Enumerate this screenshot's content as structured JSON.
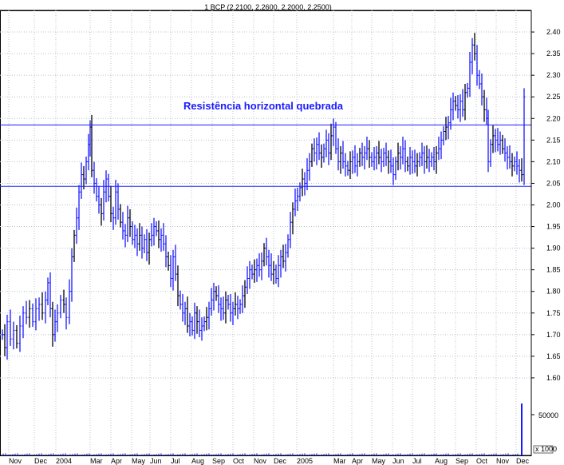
{
  "chart_data": {
    "type": "ohlc",
    "title": "1 BCP (2.2100, 2.2600, 2.2000, 2.2500)",
    "annotation": "Resistência horizontal quebrada",
    "price_axis": {
      "min": 1.55,
      "max": 2.45,
      "ticks": [
        "2.40",
        "2.35",
        "2.30",
        "2.25",
        "2.20",
        "2.15",
        "2.10",
        "2.05",
        "2.00",
        "1.95",
        "1.90",
        "1.85",
        "1.80",
        "1.75",
        "1.70",
        "1.65",
        "1.60"
      ]
    },
    "volume_axis": {
      "ticks": [
        "50000"
      ],
      "label": "x 1000"
    },
    "x_labels": [
      "Nov",
      "Dec",
      "2004",
      "Mar",
      "Apr",
      "May",
      "Jun",
      "Jul",
      "Aug",
      "Sep",
      "Oct",
      "Nov",
      "Dec",
      "2005",
      "Mar",
      "Apr",
      "May",
      "Jun",
      "Jul",
      "Aug",
      "Sep",
      "Oct",
      "Nov",
      "Dec"
    ],
    "horizontal_lines": [
      2.185,
      2.043
    ],
    "series": [
      {
        "name": "",
        "points": [
          [
            0,
            1.7
          ],
          [
            3,
            1.67
          ],
          [
            6,
            1.73
          ],
          [
            10,
            1.69
          ],
          [
            14,
            1.71
          ],
          [
            18,
            1.68
          ],
          [
            22,
            1.72
          ],
          [
            26,
            1.75
          ],
          [
            30,
            1.74
          ],
          [
            34,
            1.76
          ],
          [
            38,
            1.73
          ],
          [
            42,
            1.76
          ],
          [
            46,
            1.77
          ],
          [
            50,
            1.75
          ],
          [
            54,
            1.78
          ],
          [
            57,
            1.82
          ],
          [
            60,
            1.76
          ],
          [
            63,
            1.7
          ],
          [
            66,
            1.73
          ],
          [
            69,
            1.75
          ],
          [
            73,
            1.78
          ],
          [
            77,
            1.77
          ],
          [
            80,
            1.74
          ],
          [
            84,
            1.8
          ],
          [
            87,
            1.88
          ],
          [
            90,
            1.93
          ],
          [
            93,
            1.97
          ],
          [
            96,
            2.03
          ],
          [
            99,
            2.07
          ],
          [
            102,
            2.06
          ],
          [
            105,
            2.1
          ],
          [
            108,
            2.14
          ],
          [
            110,
            2.18
          ],
          [
            112,
            2.08
          ],
          [
            115,
            2.05
          ],
          [
            118,
            2.02
          ],
          [
            121,
            2.0
          ],
          [
            124,
            1.98
          ],
          [
            127,
            2.03
          ],
          [
            130,
            2.06
          ],
          [
            133,
            2.02
          ],
          [
            136,
            1.98
          ],
          [
            139,
            1.97
          ],
          [
            142,
            2.03
          ],
          [
            145,
            1.99
          ],
          [
            148,
            1.96
          ],
          [
            151,
            1.94
          ],
          [
            154,
            1.93
          ],
          [
            157,
            1.97
          ],
          [
            160,
            1.95
          ],
          [
            163,
            1.92
          ],
          [
            166,
            1.93
          ],
          [
            169,
            1.91
          ],
          [
            172,
            1.93
          ],
          [
            175,
            1.9
          ],
          [
            178,
            1.92
          ],
          [
            181,
            1.89
          ],
          [
            184,
            1.92
          ],
          [
            187,
            1.93
          ],
          [
            190,
            1.95
          ],
          [
            193,
            1.94
          ],
          [
            196,
            1.92
          ],
          [
            199,
            1.93
          ],
          [
            202,
            1.91
          ],
          [
            205,
            1.88
          ],
          [
            208,
            1.86
          ],
          [
            211,
            1.83
          ],
          [
            214,
            1.88
          ],
          [
            217,
            1.84
          ],
          [
            220,
            1.79
          ],
          [
            223,
            1.77
          ],
          [
            226,
            1.75
          ],
          [
            229,
            1.76
          ],
          [
            232,
            1.72
          ],
          [
            235,
            1.73
          ],
          [
            238,
            1.71
          ],
          [
            241,
            1.75
          ],
          [
            244,
            1.73
          ],
          [
            247,
            1.71
          ],
          [
            250,
            1.72
          ],
          [
            253,
            1.73
          ],
          [
            256,
            1.74
          ],
          [
            259,
            1.76
          ],
          [
            262,
            1.78
          ],
          [
            265,
            1.8
          ],
          [
            268,
            1.79
          ],
          [
            271,
            1.77
          ],
          [
            274,
            1.76
          ],
          [
            277,
            1.75
          ],
          [
            280,
            1.78
          ],
          [
            283,
            1.77
          ],
          [
            286,
            1.75
          ],
          [
            289,
            1.76
          ],
          [
            292,
            1.77
          ],
          [
            295,
            1.76
          ],
          [
            298,
            1.77
          ],
          [
            301,
            1.79
          ],
          [
            304,
            1.81
          ],
          [
            307,
            1.83
          ],
          [
            310,
            1.85
          ],
          [
            313,
            1.84
          ],
          [
            316,
            1.85
          ],
          [
            319,
            1.86
          ],
          [
            322,
            1.85
          ],
          [
            325,
            1.87
          ],
          [
            328,
            1.9
          ],
          [
            331,
            1.88
          ],
          [
            334,
            1.86
          ],
          [
            337,
            1.84
          ],
          [
            340,
            1.85
          ],
          [
            343,
            1.83
          ],
          [
            346,
            1.86
          ],
          [
            349,
            1.88
          ],
          [
            352,
            1.87
          ],
          [
            355,
            1.89
          ],
          [
            358,
            1.92
          ],
          [
            361,
            1.96
          ],
          [
            364,
            1.99
          ],
          [
            367,
            2.01
          ],
          [
            370,
            2.02
          ],
          [
            373,
            2.04
          ],
          [
            376,
            2.06
          ],
          [
            379,
            2.05
          ],
          [
            382,
            2.08
          ],
          [
            385,
            2.1
          ],
          [
            388,
            2.13
          ],
          [
            391,
            2.12
          ],
          [
            394,
            2.14
          ],
          [
            397,
            2.12
          ],
          [
            400,
            2.11
          ],
          [
            403,
            2.13
          ],
          [
            406,
            2.15
          ],
          [
            409,
            2.12
          ],
          [
            412,
            2.16
          ],
          [
            415,
            2.18
          ],
          [
            418,
            2.13
          ],
          [
            421,
            2.1
          ],
          [
            424,
            2.12
          ],
          [
            427,
            2.1
          ],
          [
            430,
            2.09
          ],
          [
            433,
            2.08
          ],
          [
            436,
            2.1
          ],
          [
            439,
            2.11
          ],
          [
            442,
            2.09
          ],
          [
            445,
            2.1
          ],
          [
            448,
            2.12
          ],
          [
            451,
            2.11
          ],
          [
            454,
            2.12
          ],
          [
            457,
            2.13
          ],
          [
            460,
            2.11
          ],
          [
            463,
            2.1
          ],
          [
            466,
            2.11
          ],
          [
            469,
            2.12
          ],
          [
            472,
            2.11
          ],
          [
            475,
            2.1
          ],
          [
            478,
            2.12
          ],
          [
            481,
            2.11
          ],
          [
            484,
            2.1
          ],
          [
            487,
            2.09
          ],
          [
            490,
            2.07
          ],
          [
            493,
            2.1
          ],
          [
            496,
            2.12
          ],
          [
            499,
            2.11
          ],
          [
            502,
            2.13
          ],
          [
            505,
            2.1
          ],
          [
            508,
            2.09
          ],
          [
            511,
            2.11
          ],
          [
            514,
            2.1
          ],
          [
            517,
            2.09
          ],
          [
            520,
            2.1
          ],
          [
            523,
            2.11
          ],
          [
            526,
            2.12
          ],
          [
            529,
            2.1
          ],
          [
            532,
            2.11
          ],
          [
            535,
            2.1
          ],
          [
            538,
            2.11
          ],
          [
            541,
            2.1
          ],
          [
            544,
            2.12
          ],
          [
            547,
            2.13
          ],
          [
            550,
            2.15
          ],
          [
            553,
            2.17
          ],
          [
            556,
            2.18
          ],
          [
            559,
            2.19
          ],
          [
            562,
            2.22
          ],
          [
            565,
            2.24
          ],
          [
            568,
            2.23
          ],
          [
            571,
            2.22
          ],
          [
            574,
            2.24
          ],
          [
            577,
            2.22
          ],
          [
            580,
            2.26
          ],
          [
            583,
            2.27
          ],
          [
            586,
            2.33
          ],
          [
            589,
            2.37
          ],
          [
            592,
            2.35
          ],
          [
            595,
            2.3
          ],
          [
            598,
            2.28
          ],
          [
            601,
            2.25
          ],
          [
            604,
            2.22
          ],
          [
            607,
            2.2
          ],
          [
            609,
            2.1
          ],
          [
            612,
            2.14
          ],
          [
            615,
            2.16
          ],
          [
            618,
            2.15
          ],
          [
            621,
            2.14
          ],
          [
            624,
            2.15
          ],
          [
            627,
            2.13
          ],
          [
            630,
            2.12
          ],
          [
            633,
            2.11
          ],
          [
            636,
            2.1
          ],
          [
            639,
            2.09
          ],
          [
            642,
            2.1
          ],
          [
            645,
            2.09
          ],
          [
            648,
            2.08
          ],
          [
            651,
            2.07
          ],
          [
            654,
            2.25
          ]
        ]
      }
    ]
  }
}
